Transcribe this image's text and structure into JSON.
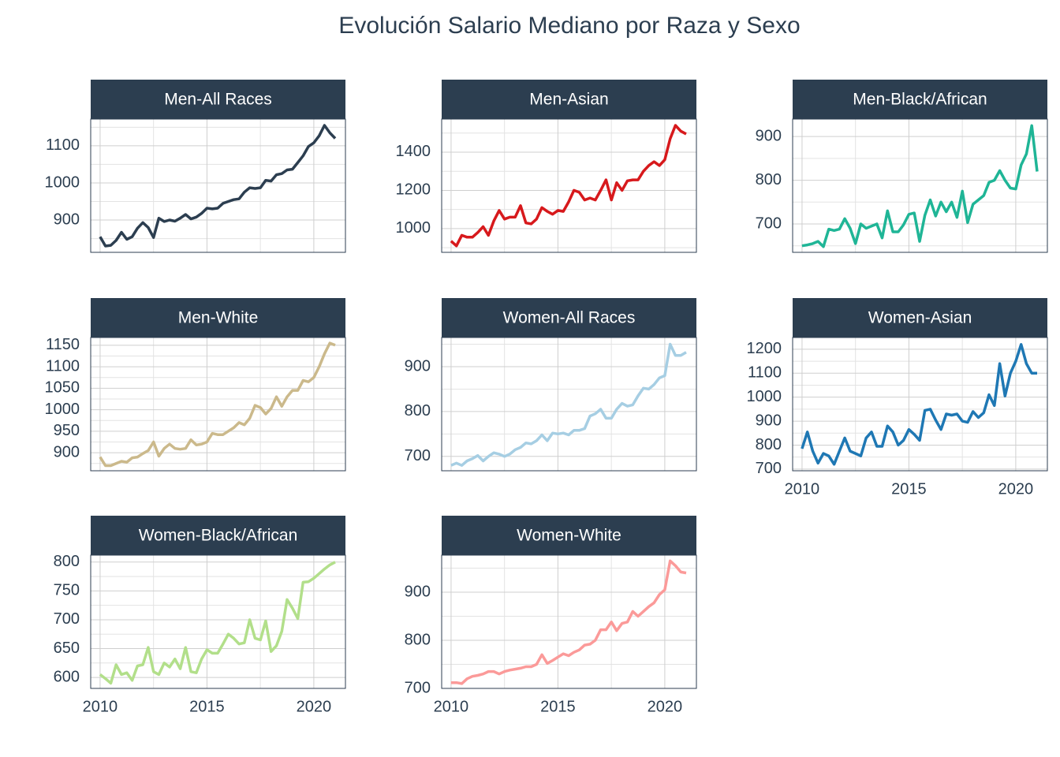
{
  "title": "Evolución Salario Mediano por Raza y Sexo",
  "chart_data": [
    {
      "type": "line",
      "title": "Men-All Races",
      "color": "#2c3e50",
      "x": [
        2010,
        2010.25,
        2010.5,
        2010.75,
        2011,
        2011.25,
        2011.5,
        2011.75,
        2012,
        2012.25,
        2012.5,
        2012.75,
        2013,
        2013.25,
        2013.5,
        2013.75,
        2014,
        2014.25,
        2014.5,
        2014.75,
        2015,
        2015.25,
        2015.5,
        2015.75,
        2016,
        2016.25,
        2016.5,
        2016.75,
        2017,
        2017.25,
        2017.5,
        2017.75,
        2018,
        2018.25,
        2018.5,
        2018.75,
        2019,
        2019.25,
        2019.5,
        2019.75,
        2020,
        2020.25,
        2020.5,
        2020.75,
        2021
      ],
      "values": [
        855,
        830,
        832,
        845,
        867,
        848,
        855,
        878,
        893,
        880,
        853,
        905,
        896,
        900,
        897,
        905,
        915,
        903,
        908,
        918,
        932,
        930,
        932,
        945,
        950,
        955,
        957,
        975,
        987,
        985,
        987,
        1007,
        1005,
        1022,
        1025,
        1035,
        1037,
        1055,
        1073,
        1098,
        1108,
        1127,
        1155,
        1135,
        1120
      ],
      "xlim": [
        2009.56,
        2021.48
      ],
      "xticks": [
        2010,
        2015,
        2020
      ],
      "ylim": [
        813,
        1172
      ],
      "yticks": [
        900,
        1000,
        1100
      ],
      "grid": true
    },
    {
      "type": "line",
      "title": "Men-Asian",
      "color": "#d7191c",
      "x": [
        2010,
        2010.25,
        2010.5,
        2010.75,
        2011,
        2011.25,
        2011.5,
        2011.75,
        2012,
        2012.25,
        2012.5,
        2012.75,
        2013,
        2013.25,
        2013.5,
        2013.75,
        2014,
        2014.25,
        2014.5,
        2014.75,
        2015,
        2015.25,
        2015.5,
        2015.75,
        2016,
        2016.25,
        2016.5,
        2016.75,
        2017,
        2017.25,
        2017.5,
        2017.75,
        2018,
        2018.25,
        2018.5,
        2018.75,
        2019,
        2019.25,
        2019.5,
        2019.75,
        2020,
        2020.25,
        2020.5,
        2020.75,
        2021
      ],
      "values": [
        935,
        910,
        965,
        955,
        955,
        980,
        1010,
        965,
        1040,
        1095,
        1050,
        1060,
        1060,
        1120,
        1030,
        1025,
        1050,
        1110,
        1090,
        1075,
        1095,
        1090,
        1140,
        1200,
        1190,
        1150,
        1160,
        1150,
        1200,
        1255,
        1150,
        1240,
        1200,
        1250,
        1255,
        1255,
        1300,
        1330,
        1350,
        1330,
        1360,
        1470,
        1540,
        1510,
        1495
      ],
      "xlim": [
        2009.56,
        2021.48
      ],
      "xticks": [
        2010,
        2015,
        2020
      ],
      "ylim": [
        876,
        1573
      ],
      "yticks": [
        1000,
        1200,
        1400
      ],
      "grid": true
    },
    {
      "type": "line",
      "title": "Men-Black/African",
      "color": "#1fb596",
      "x": [
        2010,
        2010.25,
        2010.5,
        2010.75,
        2011,
        2011.25,
        2011.5,
        2011.75,
        2012,
        2012.25,
        2012.5,
        2012.75,
        2013,
        2013.25,
        2013.5,
        2013.75,
        2014,
        2014.25,
        2014.5,
        2014.75,
        2015,
        2015.25,
        2015.5,
        2015.75,
        2016,
        2016.25,
        2016.5,
        2016.75,
        2017,
        2017.25,
        2017.5,
        2017.75,
        2018,
        2018.25,
        2018.5,
        2018.75,
        2019,
        2019.25,
        2019.5,
        2019.75,
        2020,
        2020.25,
        2020.5,
        2020.75,
        2021
      ],
      "values": [
        650,
        652,
        655,
        660,
        648,
        688,
        685,
        688,
        712,
        690,
        655,
        700,
        690,
        695,
        700,
        668,
        730,
        682,
        682,
        698,
        722,
        725,
        660,
        720,
        755,
        718,
        750,
        728,
        750,
        715,
        775,
        703,
        745,
        755,
        765,
        795,
        800,
        822,
        800,
        782,
        780,
        835,
        860,
        925,
        820
      ],
      "xlim": [
        2009.56,
        2021.48
      ],
      "xticks": [
        2010,
        2015,
        2020
      ],
      "ylim": [
        635,
        940
      ],
      "yticks": [
        700,
        800,
        900
      ],
      "grid": true
    },
    {
      "type": "line",
      "title": "Men-White",
      "color": "#cbb98b",
      "x": [
        2010,
        2010.25,
        2010.5,
        2010.75,
        2011,
        2011.25,
        2011.5,
        2011.75,
        2012,
        2012.25,
        2012.5,
        2012.75,
        2013,
        2013.25,
        2013.5,
        2013.75,
        2014,
        2014.25,
        2014.5,
        2014.75,
        2015,
        2015.25,
        2015.5,
        2015.75,
        2016,
        2016.25,
        2016.5,
        2016.75,
        2017,
        2017.25,
        2017.5,
        2017.75,
        2018,
        2018.25,
        2018.5,
        2018.75,
        2019,
        2019.25,
        2019.5,
        2019.75,
        2020,
        2020.25,
        2020.5,
        2020.75,
        2021
      ],
      "values": [
        890,
        870,
        870,
        875,
        880,
        878,
        888,
        890,
        898,
        905,
        925,
        892,
        910,
        920,
        910,
        908,
        910,
        930,
        918,
        920,
        925,
        945,
        942,
        942,
        950,
        958,
        970,
        965,
        980,
        1010,
        1005,
        990,
        1003,
        1030,
        1008,
        1030,
        1045,
        1045,
        1068,
        1065,
        1075,
        1100,
        1130,
        1155,
        1150
      ],
      "xlim": [
        2009.56,
        2021.48
      ],
      "xticks": [
        2010,
        2015,
        2020
      ],
      "ylim": [
        858,
        1168
      ],
      "yticks": [
        900,
        950,
        1000,
        1050,
        1100,
        1150
      ],
      "grid": true
    },
    {
      "type": "line",
      "title": "Women-All Races",
      "color": "#a6cee3",
      "x": [
        2010,
        2010.25,
        2010.5,
        2010.75,
        2011,
        2011.25,
        2011.5,
        2011.75,
        2012,
        2012.25,
        2012.5,
        2012.75,
        2013,
        2013.25,
        2013.5,
        2013.75,
        2014,
        2014.25,
        2014.5,
        2014.75,
        2015,
        2015.25,
        2015.5,
        2015.75,
        2016,
        2016.25,
        2016.5,
        2016.75,
        2017,
        2017.25,
        2017.5,
        2017.75,
        2018,
        2018.25,
        2018.5,
        2018.75,
        2019,
        2019.25,
        2019.5,
        2019.75,
        2020,
        2020.25,
        2020.5,
        2020.75,
        2021
      ],
      "values": [
        680,
        685,
        680,
        690,
        695,
        702,
        690,
        700,
        708,
        705,
        700,
        705,
        715,
        720,
        730,
        728,
        735,
        748,
        735,
        752,
        750,
        752,
        748,
        758,
        758,
        762,
        790,
        795,
        805,
        785,
        785,
        805,
        818,
        812,
        815,
        835,
        852,
        850,
        860,
        875,
        880,
        950,
        925,
        925,
        932
      ],
      "xlim": [
        2009.56,
        2021.48
      ],
      "xticks": [
        2010,
        2015,
        2020
      ],
      "ylim": [
        668,
        965
      ],
      "yticks": [
        700,
        800,
        900
      ],
      "grid": true
    },
    {
      "type": "line",
      "title": "Women-Asian",
      "color": "#1f78b4",
      "x": [
        2010,
        2010.25,
        2010.5,
        2010.75,
        2011,
        2011.25,
        2011.5,
        2011.75,
        2012,
        2012.25,
        2012.5,
        2012.75,
        2013,
        2013.25,
        2013.5,
        2013.75,
        2014,
        2014.25,
        2014.5,
        2014.75,
        2015,
        2015.25,
        2015.5,
        2015.75,
        2016,
        2016.25,
        2016.5,
        2016.75,
        2017,
        2017.25,
        2017.5,
        2017.75,
        2018,
        2018.25,
        2018.5,
        2018.75,
        2019,
        2019.25,
        2019.5,
        2019.75,
        2020,
        2020.25,
        2020.5,
        2020.75,
        2021
      ],
      "values": [
        785,
        855,
        775,
        725,
        765,
        755,
        720,
        775,
        830,
        775,
        765,
        755,
        830,
        855,
        795,
        795,
        880,
        855,
        800,
        820,
        865,
        845,
        820,
        945,
        950,
        905,
        865,
        930,
        925,
        930,
        900,
        895,
        940,
        915,
        935,
        1010,
        965,
        1140,
        1005,
        1100,
        1150,
        1220,
        1140,
        1100,
        1100
      ],
      "xlim": [
        2009.56,
        2021.48
      ],
      "xticks": [
        2010,
        2015,
        2020
      ],
      "ylim": [
        693,
        1249
      ],
      "yticks": [
        700,
        800,
        900,
        1000,
        1100,
        1200
      ],
      "grid": true
    },
    {
      "type": "line",
      "title": "Women-Black/African",
      "color": "#b2df8a",
      "x": [
        2010,
        2010.25,
        2010.5,
        2010.75,
        2011,
        2011.25,
        2011.5,
        2011.75,
        2012,
        2012.25,
        2012.5,
        2012.75,
        2013,
        2013.25,
        2013.5,
        2013.75,
        2014,
        2014.25,
        2014.5,
        2014.75,
        2015,
        2015.25,
        2015.5,
        2015.75,
        2016,
        2016.25,
        2016.5,
        2016.75,
        2017,
        2017.25,
        2017.5,
        2017.75,
        2018,
        2018.25,
        2018.5,
        2018.75,
        2019,
        2019.25,
        2019.5,
        2019.75,
        2020,
        2020.25,
        2020.5,
        2020.75,
        2021
      ],
      "values": [
        605,
        598,
        590,
        622,
        605,
        608,
        595,
        620,
        622,
        652,
        610,
        605,
        625,
        618,
        632,
        615,
        652,
        610,
        608,
        632,
        648,
        642,
        642,
        658,
        675,
        668,
        658,
        660,
        700,
        668,
        665,
        698,
        645,
        655,
        680,
        735,
        720,
        702,
        765,
        766,
        772,
        780,
        788,
        795,
        800
      ],
      "xlim": [
        2009.56,
        2021.48
      ],
      "xticks": [
        2010,
        2015,
        2020
      ],
      "ylim": [
        581,
        812
      ],
      "yticks": [
        600,
        650,
        700,
        750,
        800
      ],
      "grid": true
    },
    {
      "type": "line",
      "title": "Women-White",
      "color": "#fb9a99",
      "x": [
        2010,
        2010.25,
        2010.5,
        2010.75,
        2011,
        2011.25,
        2011.5,
        2011.75,
        2012,
        2012.25,
        2012.5,
        2012.75,
        2013,
        2013.25,
        2013.5,
        2013.75,
        2014,
        2014.25,
        2014.5,
        2014.75,
        2015,
        2015.25,
        2015.5,
        2015.75,
        2016,
        2016.25,
        2016.5,
        2016.75,
        2017,
        2017.25,
        2017.5,
        2017.75,
        2018,
        2018.25,
        2018.5,
        2018.75,
        2019,
        2019.25,
        2019.5,
        2019.75,
        2020,
        2020.25,
        2020.5,
        2020.75,
        2021
      ],
      "values": [
        712,
        712,
        710,
        720,
        725,
        727,
        730,
        735,
        735,
        730,
        735,
        738,
        740,
        742,
        745,
        745,
        750,
        770,
        752,
        758,
        765,
        772,
        768,
        775,
        780,
        790,
        792,
        800,
        822,
        822,
        838,
        820,
        835,
        838,
        860,
        850,
        860,
        870,
        878,
        895,
        905,
        965,
        955,
        942,
        940
      ],
      "xlim": [
        2009.56,
        2021.48
      ],
      "xticks": [
        2010,
        2015,
        2020
      ],
      "ylim": [
        700,
        977
      ],
      "yticks": [
        700,
        800,
        900
      ],
      "grid": true
    }
  ]
}
